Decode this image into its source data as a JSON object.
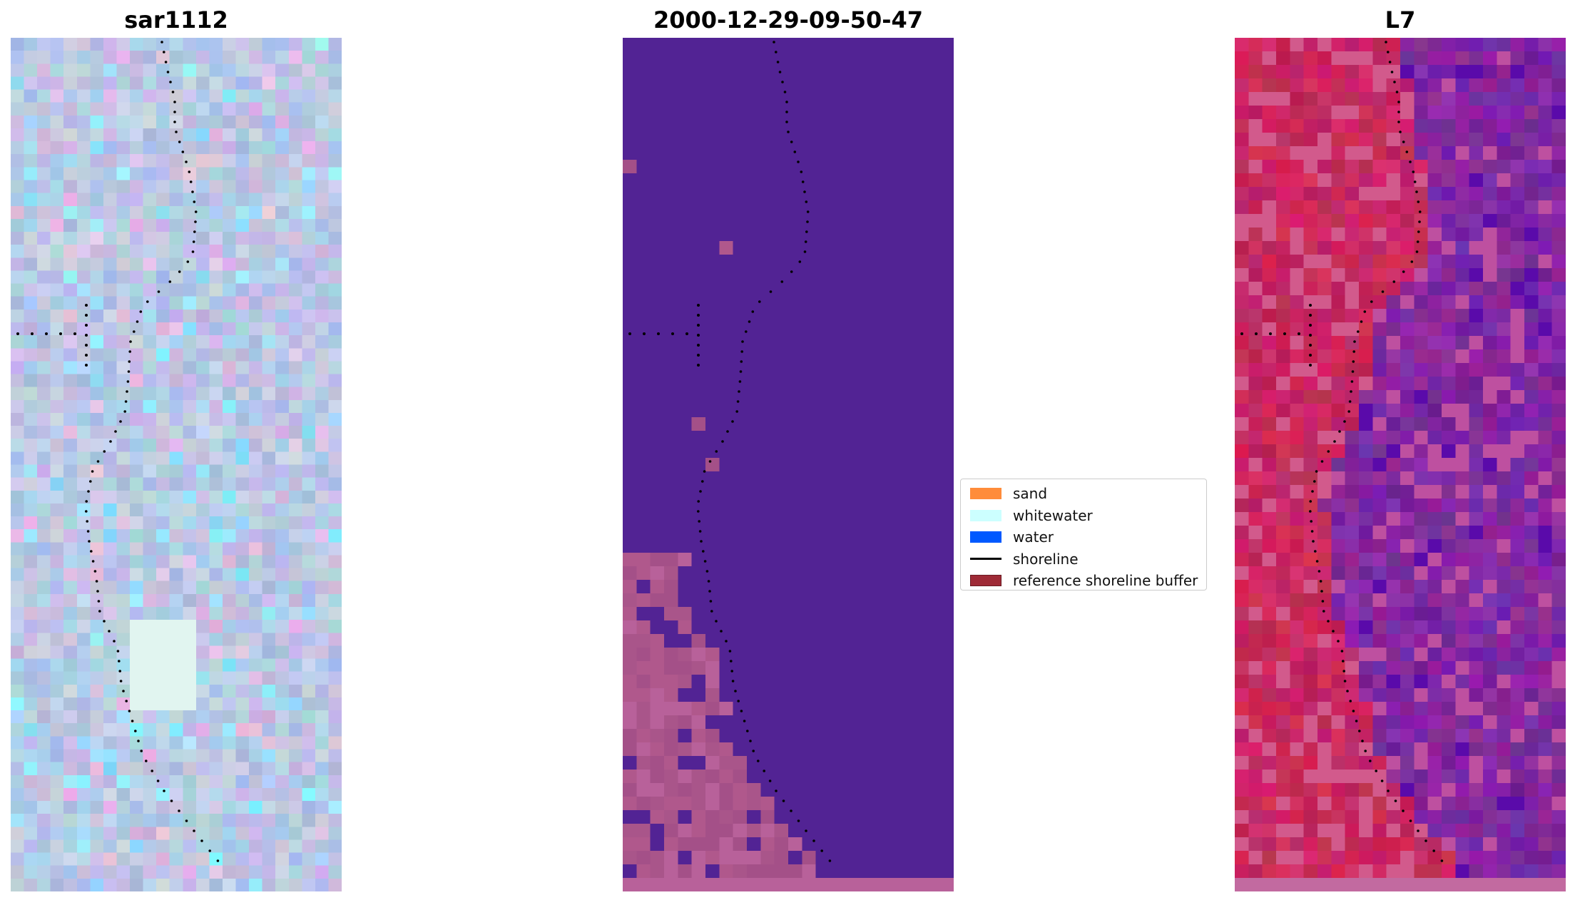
{
  "panels": [
    {
      "title": "sar1112",
      "image": "false-colour RGB composite (pale pink / lavender / light blue pixels)"
    },
    {
      "title": "2000-12-29-09-50-47",
      "image": "classified image: purple background with mauve patches in lower left"
    },
    {
      "title": "L7",
      "image": "false-colour composite: crimson to the west, purple to the east"
    }
  ],
  "legend": {
    "items": [
      {
        "label": "sand",
        "color": "#ff8c3a",
        "kind": "patch"
      },
      {
        "label": "whitewater",
        "color": "#ccffff",
        "kind": "patch"
      },
      {
        "label": "water",
        "color": "#0059ff",
        "kind": "patch"
      },
      {
        "label": "shoreline",
        "color": "#000000",
        "kind": "line"
      },
      {
        "label": "reference shoreline buffer",
        "color": "#9e2a36",
        "kind": "patch"
      }
    ]
  }
}
